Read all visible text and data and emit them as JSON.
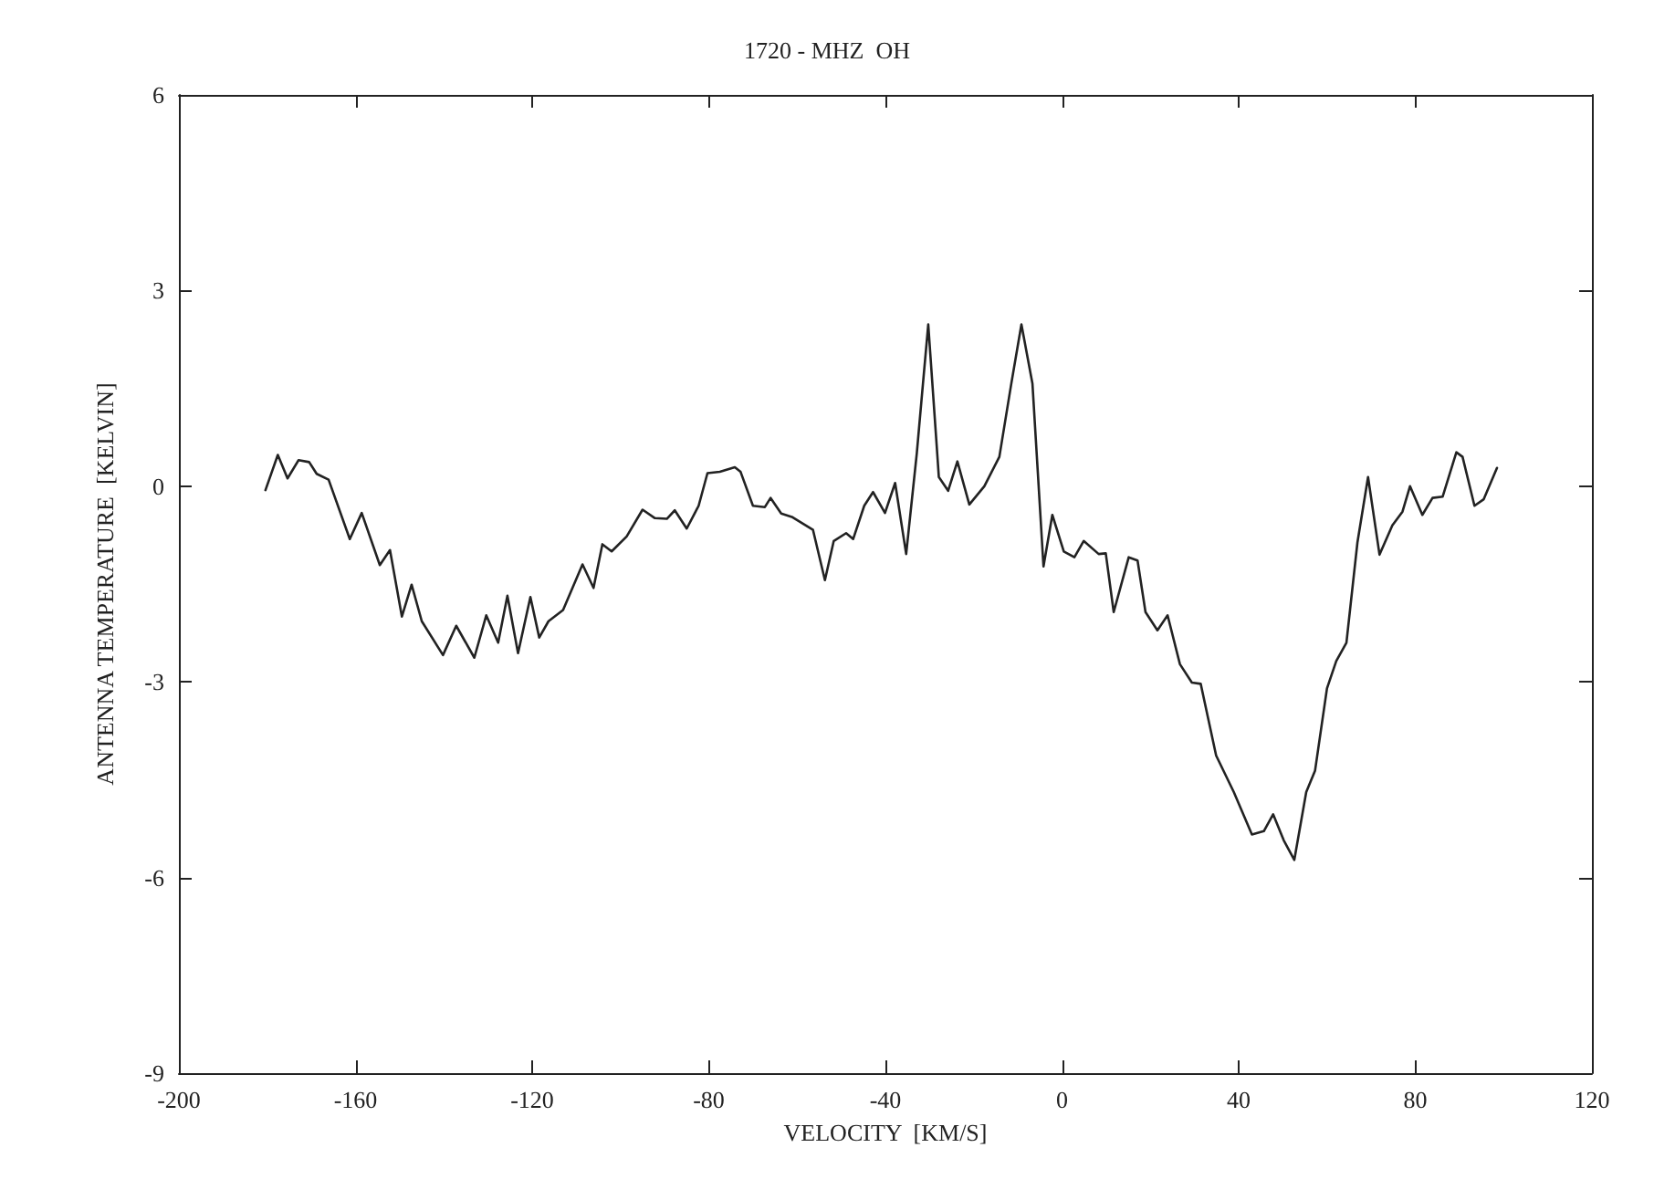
{
  "chart_data": {
    "type": "line",
    "title": "1720 - MHZ  OH",
    "xlabel": "VELOCITY  [KM/S]",
    "ylabel": "ANTENNA TEMPERATURE  [KELVIN]",
    "xlim": [
      -200,
      120
    ],
    "xticks": [
      -200,
      -160,
      -120,
      -80,
      -40,
      0,
      40,
      80,
      120
    ],
    "ylim": [
      -9,
      6
    ],
    "yticks": [
      -9,
      -6,
      -3,
      0,
      3,
      6
    ],
    "grid": false,
    "marker": "none",
    "line_style": "solid",
    "series": [
      {
        "color": "#222222",
        "x": [
          -180.4,
          -177.6,
          -175.4,
          -172.9,
          -170.5,
          -168.8,
          -166.1,
          -161.3,
          -158.6,
          -154.5,
          -152.2,
          -149.5,
          -147.3,
          -145,
          -140.2,
          -137.2,
          -133.1,
          -130.4,
          -127.7,
          -125.6,
          -123.2,
          -120.4,
          -118.4,
          -116.3,
          -113,
          -108.6,
          -106.1,
          -104.1,
          -102,
          -98.6,
          -95,
          -92.2,
          -89.5,
          -87.7,
          -85,
          -82.3,
          -80.3,
          -77.5,
          -74.1,
          -72.8,
          -70,
          -67.3,
          -66,
          -63.6,
          -61.2,
          -56.4,
          -53.7,
          -51.7,
          -48.9,
          -47.3,
          -44.8,
          -42.8,
          -40.1,
          -37.8,
          -35.3,
          -32.9,
          -31.5,
          -30.3,
          -28.5,
          -27.9,
          -25.8,
          -23.7,
          -21,
          -17.6,
          -14.2,
          -11.5,
          -9.2,
          -6.7,
          -4.2,
          -2.2,
          0.4,
          2.8,
          4.9,
          8.3,
          9.9,
          11.7,
          15.1,
          17.1,
          18.9,
          21.6,
          23.9,
          26.7,
          29.4,
          31.4,
          34.9,
          38.9,
          43,
          45.7,
          47.8,
          50.2,
          52.6,
          55.3,
          57.3,
          60,
          62.1,
          64.4,
          66.9,
          69.3,
          71.9,
          74.8,
          77.1,
          78.8,
          81.6,
          83.9,
          86.2,
          89.3,
          90.7,
          93.4,
          95.5,
          98.5
        ],
        "values": [
          -0.06,
          0.48,
          0.12,
          0.4,
          0.37,
          0.19,
          0.1,
          -0.81,
          -0.41,
          -1.21,
          -0.98,
          -2,
          -1.51,
          -2.07,
          -2.59,
          -2.14,
          -2.63,
          -1.98,
          -2.4,
          -1.68,
          -2.56,
          -1.7,
          -2.32,
          -2.07,
          -1.9,
          -1.2,
          -1.56,
          -0.89,
          -1,
          -0.77,
          -0.36,
          -0.49,
          -0.5,
          -0.37,
          -0.65,
          -0.3,
          0.2,
          0.22,
          0.29,
          0.22,
          -0.3,
          -0.32,
          -0.18,
          -0.42,
          -0.47,
          -0.67,
          -1.44,
          -0.84,
          -0.72,
          -0.81,
          -0.3,
          -0.09,
          -0.41,
          0.05,
          -1.04,
          0.5,
          1.57,
          2.48,
          0.73,
          0.14,
          -0.07,
          0.38,
          -0.28,
          0,
          0.45,
          1.57,
          2.48,
          1.57,
          -1.23,
          -0.44,
          -1,
          -1.09,
          -0.84,
          -1.04,
          -1.03,
          -1.93,
          -1.09,
          -1.14,
          -1.93,
          -2.21,
          -1.98,
          -2.73,
          -3.01,
          -3.03,
          -4.13,
          -4.69,
          -5.34,
          -5.29,
          -5.03,
          -5.43,
          -5.73,
          -4.69,
          -4.36,
          -3.1,
          -2.68,
          -2.4,
          -0.86,
          0.14,
          -1.05,
          -0.6,
          -0.39,
          0,
          -0.44,
          -0.18,
          -0.16,
          0.52,
          0.45,
          -0.3,
          -0.2,
          0.28
        ]
      }
    ]
  }
}
